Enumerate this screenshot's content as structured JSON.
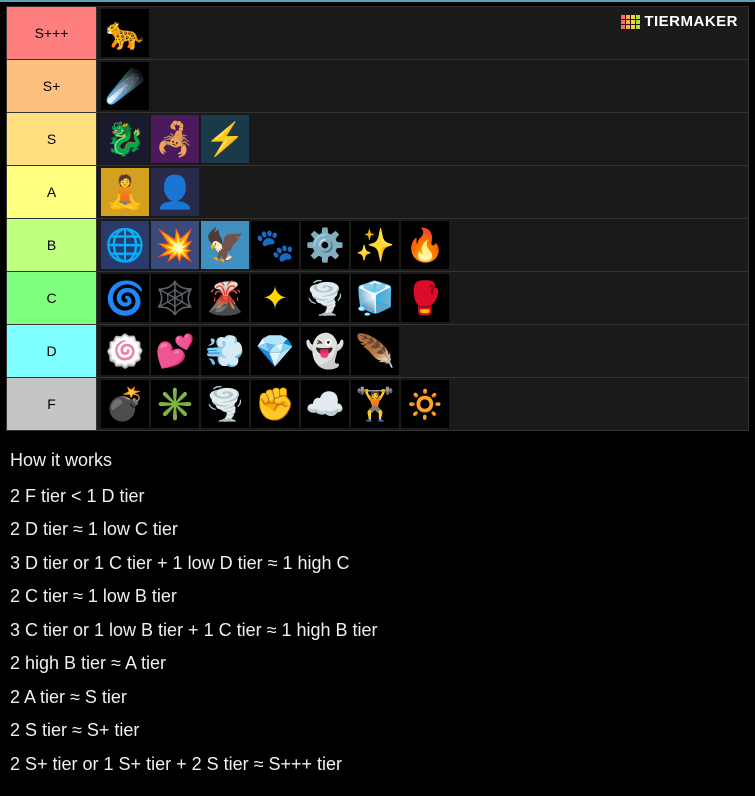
{
  "watermark": {
    "text": "TIERMAKER",
    "grid_colors": [
      "#ff6b6b",
      "#ffa94d",
      "#ffd43b",
      "#a9e34b",
      "#ff6b6b",
      "#ffa94d",
      "#ffd43b",
      "#a9e34b",
      "#ff6b6b",
      "#ffa94d",
      "#ffd43b",
      "#a9e34b"
    ]
  },
  "tiers": [
    {
      "label": "S+++",
      "bg": "#ff7f7f",
      "items": [
        {
          "name": "leopard",
          "glyph": "🐆",
          "bg": "#000"
        }
      ]
    },
    {
      "label": "S+",
      "bg": "#ffbf7f",
      "items": [
        {
          "name": "dough",
          "glyph": "☄️",
          "bg": "#000"
        }
      ]
    },
    {
      "label": "S",
      "bg": "#ffdf7f",
      "items": [
        {
          "name": "dragon",
          "glyph": "🐉",
          "bg": "#1a1a2e"
        },
        {
          "name": "venom",
          "glyph": "🦂",
          "bg": "#4a1a5a"
        },
        {
          "name": "rumble",
          "glyph": "⚡",
          "bg": "#1a3a4a"
        }
      ]
    },
    {
      "label": "A",
      "bg": "#feff7f",
      "items": [
        {
          "name": "buddha",
          "glyph": "🧘",
          "bg": "#d4a020"
        },
        {
          "name": "dark",
          "glyph": "👤",
          "bg": "#2a2a4a"
        }
      ]
    },
    {
      "label": "B",
      "bg": "#beff7f",
      "items": [
        {
          "name": "blizzard",
          "glyph": "🌐",
          "bg": "#2a3a6a"
        },
        {
          "name": "quake",
          "glyph": "💥",
          "bg": "#3a4a7a"
        },
        {
          "name": "phoenix",
          "glyph": "🦅",
          "bg": "#4090c0"
        },
        {
          "name": "paw",
          "glyph": "🐾",
          "bg": "#000"
        },
        {
          "name": "control",
          "glyph": "⚙️",
          "bg": "#000"
        },
        {
          "name": "light",
          "glyph": "✨",
          "bg": "#000"
        },
        {
          "name": "flame",
          "glyph": "🔥",
          "bg": "#000"
        }
      ]
    },
    {
      "label": "C",
      "bg": "#7fff7f",
      "items": [
        {
          "name": "portal",
          "glyph": "🌀",
          "bg": "#000"
        },
        {
          "name": "shadow",
          "glyph": "🕸️",
          "bg": "#000"
        },
        {
          "name": "magma",
          "glyph": "🌋",
          "bg": "#000"
        },
        {
          "name": "spirit",
          "glyph": "✦",
          "bg": "#000",
          "color": "#ffd700"
        },
        {
          "name": "gravity",
          "glyph": "🌪️",
          "bg": "#000"
        },
        {
          "name": "ice",
          "glyph": "🧊",
          "bg": "#000"
        },
        {
          "name": "string",
          "glyph": "🥊",
          "bg": "#000"
        }
      ]
    },
    {
      "label": "D",
      "bg": "#7fffff",
      "items": [
        {
          "name": "spin",
          "glyph": "🍥",
          "bg": "#000",
          "color": "#ff9040"
        },
        {
          "name": "love",
          "glyph": "💕",
          "bg": "#000"
        },
        {
          "name": "smoke",
          "glyph": "💨",
          "bg": "#000"
        },
        {
          "name": "diamond",
          "glyph": "💎",
          "bg": "#000"
        },
        {
          "name": "revive",
          "glyph": "👻",
          "bg": "#000",
          "color": "#80ff80"
        },
        {
          "name": "falcon",
          "glyph": "🪶",
          "bg": "#000"
        }
      ]
    },
    {
      "label": "F",
      "bg": "#c5c5c5",
      "items": [
        {
          "name": "bomb",
          "glyph": "💣",
          "bg": "#000"
        },
        {
          "name": "spike",
          "glyph": "✳️",
          "bg": "#000"
        },
        {
          "name": "sand",
          "glyph": "🌪️",
          "bg": "#000",
          "color": "#d0d0d0"
        },
        {
          "name": "chop",
          "glyph": "✊",
          "bg": "#000"
        },
        {
          "name": "spring",
          "glyph": "☁️",
          "bg": "#000"
        },
        {
          "name": "kilo",
          "glyph": "🏋️",
          "bg": "#000"
        },
        {
          "name": "barrier",
          "glyph": "🔅",
          "bg": "#000"
        }
      ]
    }
  ],
  "rules": {
    "title": "How it works",
    "lines": [
      "2 F tier < 1 D tier",
      "2 D tier ≈ 1 low C tier",
      "3 D tier or 1 C tier + 1 low D tier ≈ 1 high C",
      "2 C tier ≈ 1 low B tier",
      "3 C tier or 1 low B tier + 1 C tier ≈ 1 high B tier",
      "2 high B tier ≈ A tier",
      "2 A tier ≈ S tier",
      "2 S tier ≈ S+ tier",
      "2 S+ tier or 1 S+ tier + 2 S tier ≈ S+++ tier"
    ]
  }
}
